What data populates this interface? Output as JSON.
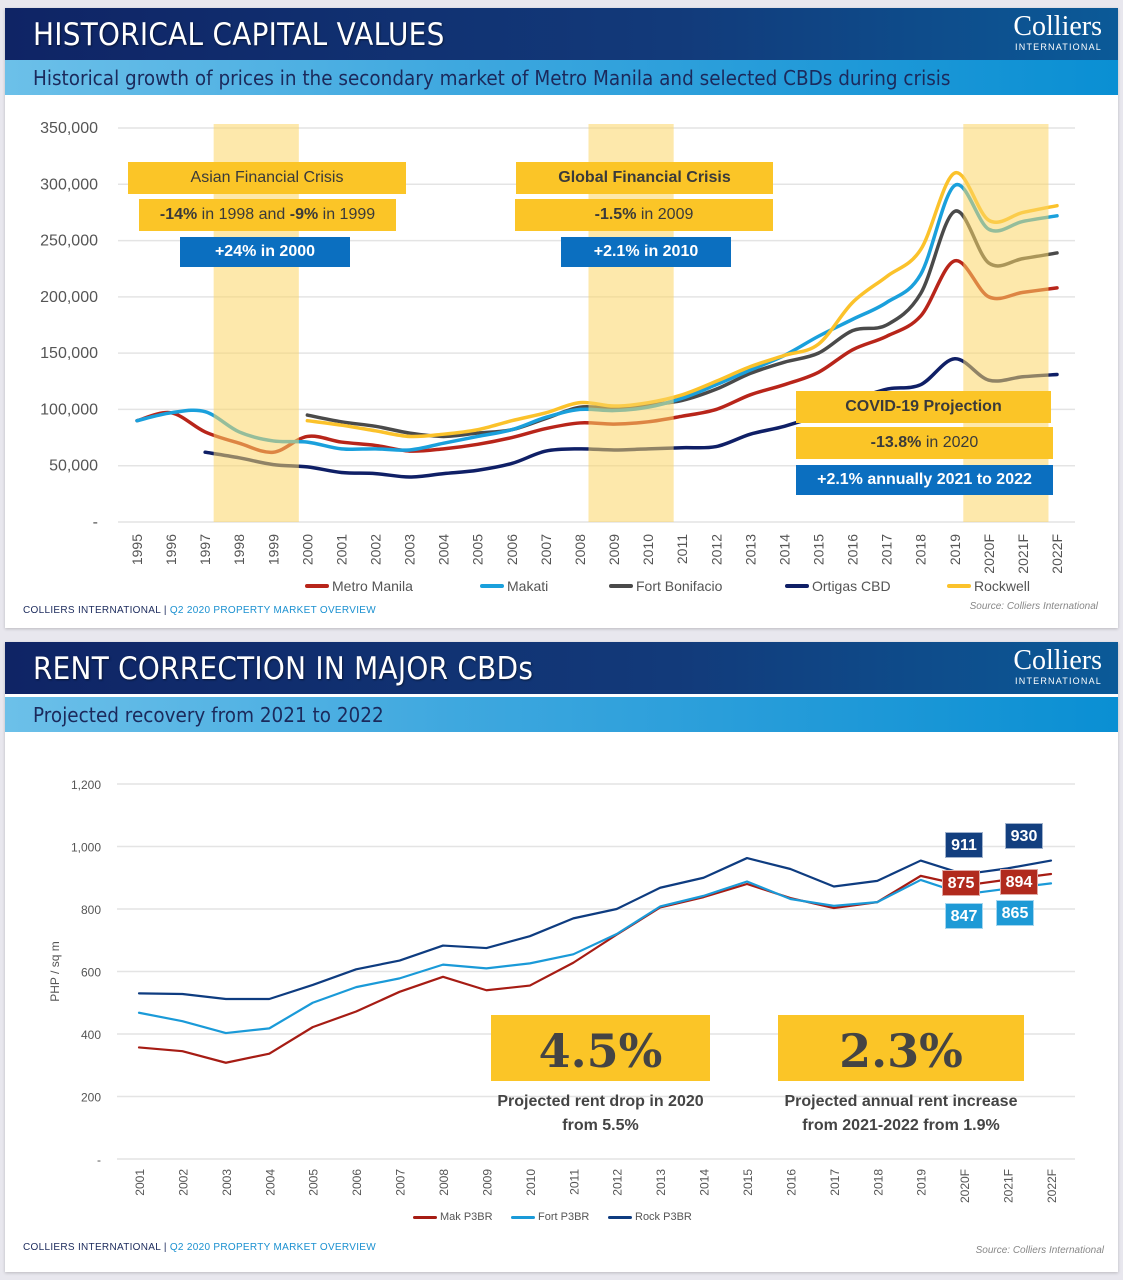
{
  "slide1": {
    "title": "HISTORICAL CAPITAL VALUES",
    "logo": {
      "name": "Colliers",
      "sub": "INTERNATIONAL"
    },
    "subtitle": "Historical growth of prices in the secondary market of Metro Manila and selected CBDs during crisis",
    "annotations": {
      "asian": {
        "title": "Asian Financial Crisis",
        "drop_a": "-14%",
        "drop_a_text": " in 1998 and ",
        "drop_b": "-9%",
        "drop_b_text": " in 1999",
        "recovery": "+24% in 2000"
      },
      "global": {
        "title": "Global Financial Crisis",
        "drop": "-1.5%",
        "drop_text": " in 2009",
        "recovery": "+2.1% in 2010"
      },
      "covid": {
        "title": "COVID-19 Projection",
        "drop": "-13.8%",
        "drop_text": " in 2020",
        "recovery": "+2.1% annually 2021 to 2022"
      }
    },
    "footer": {
      "company": "COLLIERS INTERNATIONAL",
      "separator": "|",
      "report": "Q2 2020 PROPERTY MARKET OVERVIEW"
    },
    "source": "Source: Colliers International"
  },
  "slide2": {
    "title": "RENT CORRECTION IN MAJOR CBDs",
    "logo": {
      "name": "Colliers",
      "sub": "INTERNATIONAL"
    },
    "subtitle": "Projected recovery from 2021 to 2022",
    "callouts": [
      {
        "value": "4.5%",
        "caption_line1": "Projected rent drop in 2020",
        "caption_line2": "from 5.5%"
      },
      {
        "value": "2.3%",
        "caption_line1": "Projected annual rent increase",
        "caption_line2": "from 2021-2022 from 1.9%"
      }
    ],
    "footer": {
      "company": "COLLIERS INTERNATIONAL",
      "separator": "|",
      "report": "Q2 2020 PROPERTY MARKET OVERVIEW"
    },
    "source": "Source: Colliers International"
  },
  "chart_data": [
    {
      "type": "line",
      "title": "",
      "xlabel": "",
      "ylabel": "",
      "ylim": [
        0,
        350000
      ],
      "yticks": [
        "-",
        "50,000",
        "100,000",
        "150,000",
        "200,000",
        "250,000",
        "300,000",
        "350,000"
      ],
      "grid": true,
      "smooth": true,
      "legend": "bottom",
      "categories": [
        "1995",
        "1996",
        "1997",
        "1998",
        "1999",
        "2000",
        "2001",
        "2002",
        "2003",
        "2004",
        "2005",
        "2006",
        "2007",
        "2008",
        "2009",
        "2010",
        "2011",
        "2012",
        "2013",
        "2014",
        "2015",
        "2016",
        "2017",
        "2018",
        "2019",
        "2020F",
        "2021F",
        "2022F"
      ],
      "highlight_bands": [
        [
          "1998",
          "1999"
        ],
        [
          "2009",
          "2010"
        ],
        [
          "2020F",
          "2021F"
        ]
      ],
      "band_color": "#fcd666",
      "series": [
        {
          "name": "Ortigas CBD",
          "color": "#0f1f66",
          "values": [
            null,
            null,
            62000,
            57000,
            51000,
            49000,
            44000,
            43000,
            40000,
            43000,
            46000,
            52000,
            63000,
            65000,
            64000,
            65000,
            66000,
            67000,
            78000,
            85000,
            95000,
            108000,
            118000,
            122000,
            145000,
            126000,
            129000,
            131000
          ]
        },
        {
          "name": "Metro Manila",
          "color": "#b8251a",
          "values": [
            90000,
            97000,
            80000,
            70000,
            62000,
            76000,
            71000,
            68000,
            63000,
            65000,
            69000,
            75000,
            83000,
            88000,
            87000,
            89000,
            94000,
            100000,
            113000,
            122000,
            133000,
            153000,
            165000,
            183000,
            232000,
            200000,
            204000,
            208000
          ]
        },
        {
          "name": "Fort Bonifacio",
          "color": "#4a4a4a",
          "values": [
            null,
            null,
            null,
            null,
            null,
            95000,
            89000,
            85000,
            79000,
            76000,
            79000,
            82000,
            92000,
            102000,
            101000,
            104000,
            108000,
            118000,
            132000,
            142000,
            150000,
            170000,
            175000,
            203000,
            276000,
            230000,
            234000,
            239000
          ]
        },
        {
          "name": "Makati",
          "color": "#1aa0dc",
          "values": [
            90000,
            97000,
            98000,
            80000,
            72000,
            71000,
            65000,
            65000,
            64000,
            70000,
            76000,
            82000,
            93000,
            100000,
            99000,
            102000,
            110000,
            122000,
            135000,
            148000,
            165000,
            180000,
            195000,
            220000,
            299000,
            260000,
            267000,
            272000
          ]
        },
        {
          "name": "Rockwell",
          "color": "#fbc22b",
          "values": [
            null,
            null,
            null,
            null,
            null,
            90000,
            86000,
            81000,
            76000,
            78000,
            82000,
            90000,
            97000,
            106000,
            103000,
            106000,
            113000,
            125000,
            138000,
            148000,
            158000,
            195000,
            218000,
            242000,
            310000,
            268000,
            275000,
            281000
          ]
        }
      ],
      "legend_order": [
        "Metro Manila",
        "Makati",
        "Fort Bonifacio",
        "Ortigas CBD",
        "Rockwell"
      ]
    },
    {
      "type": "line",
      "title": "",
      "xlabel": "",
      "ylabel": "PHP / sq m",
      "ylim": [
        0,
        1200
      ],
      "yticks": [
        "-",
        "200",
        "400",
        "600",
        "800",
        "1,000",
        "1,200"
      ],
      "grid": true,
      "smooth": false,
      "legend": "bottom",
      "categories": [
        "2001",
        "2002",
        "2003",
        "2004",
        "2005",
        "2006",
        "2007",
        "2008",
        "2009",
        "2010",
        "2011",
        "2012",
        "2013",
        "2014",
        "2015",
        "2016",
        "2017",
        "2018",
        "2019",
        "2020F",
        "2021F",
        "2022F"
      ],
      "series": [
        {
          "name": "Mak P3BR",
          "color": "#a61c14",
          "values": [
            357,
            345,
            308,
            337,
            422,
            472,
            535,
            583,
            540,
            555,
            628,
            718,
            805,
            838,
            880,
            835,
            803,
            822,
            906,
            875,
            894,
            912
          ]
        },
        {
          "name": "Fort P3BR",
          "color": "#1a9ad8",
          "values": [
            468,
            441,
            403,
            418,
            500,
            550,
            578,
            622,
            610,
            626,
            655,
            720,
            808,
            842,
            888,
            832,
            810,
            822,
            893,
            847,
            865,
            882
          ]
        },
        {
          "name": "Rock P3BR",
          "color": "#0e3c80",
          "values": [
            530,
            528,
            512,
            512,
            557,
            607,
            635,
            683,
            675,
            713,
            770,
            800,
            868,
            900,
            963,
            928,
            872,
            890,
            955,
            911,
            930,
            955
          ]
        }
      ],
      "data_labels": [
        {
          "series": "Rock P3BR",
          "category": "2020F",
          "text": "911",
          "color": "#133f7f"
        },
        {
          "series": "Rock P3BR",
          "category": "2021F",
          "text": "930",
          "color": "#133f7f"
        },
        {
          "series": "Mak P3BR",
          "category": "2020F",
          "text": "875",
          "color": "#b12a1d"
        },
        {
          "series": "Mak P3BR",
          "category": "2021F",
          "text": "894",
          "color": "#b12a1d"
        },
        {
          "series": "Fort P3BR",
          "category": "2020F",
          "text": "847",
          "color": "#1e9ad6"
        },
        {
          "series": "Fort P3BR",
          "category": "2021F",
          "text": "865",
          "color": "#1e9ad6"
        }
      ]
    }
  ]
}
